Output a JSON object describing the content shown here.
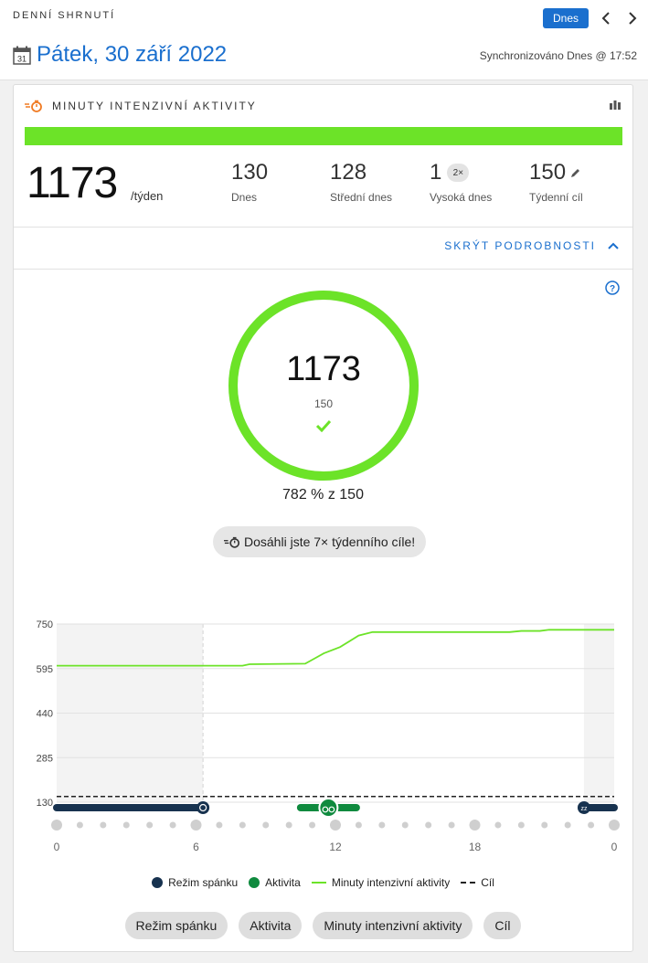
{
  "header": {
    "section_label": "DENNÍ SHRNUTÍ",
    "today_button": "Dnes",
    "date_title": "Pátek, 30 září 2022",
    "calendar_day": "31",
    "sync_text": "Synchronizováno Dnes @ 17:52"
  },
  "card": {
    "title": "MINUTY INTENZIVNÍ AKTIVITY",
    "progress_fraction": 1.0,
    "total": "1173",
    "total_unit": "/týden",
    "stats": [
      {
        "value": "130",
        "label": "Dnes"
      },
      {
        "value": "128",
        "label": "Střední dnes"
      },
      {
        "value": "1",
        "label": "Vysoká dnes",
        "badge": "2×"
      },
      {
        "value": "150",
        "label": "Týdenní cíl"
      }
    ],
    "hide_details": "SKRÝT PODROBNOSTI",
    "ring": {
      "value": "1173",
      "goal": "150",
      "progress_fraction": 1.0
    },
    "percent_text": "782 % z 150",
    "achievement": "Dosáhli jste 7× týdenního cíle!"
  },
  "colors": {
    "accent": "#1a6fce",
    "progress": "#6ce328",
    "sleep": "#17324f",
    "activity": "#0f8a3e",
    "icon_orange": "#f07a22"
  },
  "chart_data": {
    "type": "line",
    "ylim": [
      130,
      750
    ],
    "yticks": [
      "750",
      "595",
      "440",
      "285",
      "130"
    ],
    "xticks": [
      "0",
      "6",
      "12",
      "18",
      "0"
    ],
    "goal": 150,
    "series": [
      {
        "name": "Minuty intenzivní aktivity",
        "x": [
          0,
          8,
          8.3,
          10.7,
          11.1,
          11.5,
          12.2,
          13.0,
          13.6,
          19.5,
          20.0,
          20.8,
          21.2,
          24
        ],
        "y": [
          605,
          605,
          610,
          612,
          630,
          648,
          670,
          710,
          722,
          722,
          726,
          726,
          730,
          730
        ]
      }
    ],
    "sleep_segments": [
      [
        0,
        6.3
      ],
      [
        22.7,
        24
      ]
    ],
    "activity_segments": [
      [
        10.5,
        12.9
      ]
    ],
    "shaded_ranges": [
      [
        0,
        6.3
      ],
      [
        22.7,
        24
      ]
    ]
  },
  "legend": [
    {
      "label": "Režim spánku",
      "kind": "sleep"
    },
    {
      "label": "Aktivita",
      "kind": "activity"
    },
    {
      "label": "Minuty intenzivní aktivity",
      "kind": "line"
    },
    {
      "label": "Cíl",
      "kind": "dash"
    }
  ],
  "filters": [
    "Režim spánku",
    "Aktivita",
    "Minuty intenzivní aktivity",
    "Cíl"
  ]
}
